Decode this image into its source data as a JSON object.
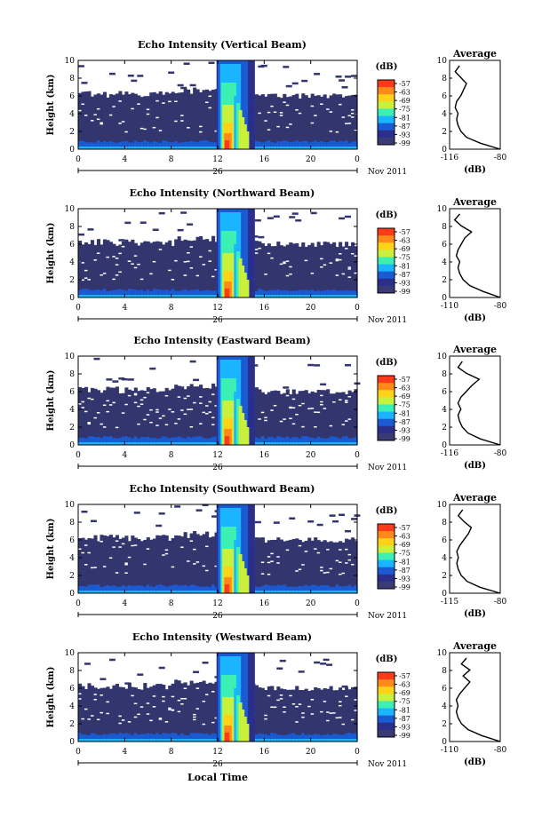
{
  "chart_data": {
    "type": "heatmap",
    "figure_xlabel": "Local Time",
    "date_label": "26",
    "month_label": "Nov 2011",
    "panels": [
      {
        "title": "Echo Intensity (Vertical Beam)",
        "ylabel": "Height (km)",
        "xlim": [
          0,
          24
        ],
        "ylim": [
          0,
          10
        ],
        "xticks": [
          "0",
          "4",
          "8",
          "12",
          "16",
          "20",
          "0"
        ],
        "yticks": [
          "0",
          "2",
          "4",
          "6",
          "8",
          "10"
        ],
        "colorbar_unit": "(dB)",
        "colorbar_ticks": [
          "-57",
          "-63",
          "-69",
          "-75",
          "-81",
          "-87",
          "-93",
          "-99"
        ],
        "avg_title": "Average",
        "avg_xlabel": "(dB)",
        "avg_xticks": [
          "-116",
          "-80"
        ],
        "avg_xlim": [
          -116,
          -80
        ],
        "avg_profile_db": [
          -80,
          -94,
          -104,
          -108,
          -110,
          -111,
          -110,
          -112,
          -111,
          -108,
          -106,
          -104,
          -108,
          -112,
          -109
        ]
      },
      {
        "title": "Echo Intensity (Northward Beam)",
        "ylabel": "Height (km)",
        "xlim": [
          0,
          24
        ],
        "ylim": [
          0,
          10
        ],
        "xticks": [
          "0",
          "4",
          "8",
          "12",
          "16",
          "20",
          "0"
        ],
        "yticks": [
          "0",
          "2",
          "4",
          "6",
          "8",
          "10"
        ],
        "colorbar_unit": "(dB)",
        "colorbar_ticks": [
          "-57",
          "-63",
          "-69",
          "-75",
          "-81",
          "-87",
          "-93",
          "-99"
        ],
        "avg_title": "Average",
        "avg_xlabel": "(dB)",
        "avg_xticks": [
          "-110",
          "-80"
        ],
        "avg_xlim": [
          -110,
          -80
        ],
        "avg_profile_db": [
          -80,
          -90,
          -98,
          -102,
          -104,
          -105,
          -104,
          -106,
          -105,
          -103,
          -101,
          -97,
          -103,
          -107,
          -104
        ]
      },
      {
        "title": "Echo Intensity (Eastward Beam)",
        "ylabel": "Height (km)",
        "xlim": [
          0,
          24
        ],
        "ylim": [
          0,
          10
        ],
        "xticks": [
          "0",
          "4",
          "8",
          "12",
          "16",
          "20",
          "0"
        ],
        "yticks": [
          "0",
          "2",
          "4",
          "6",
          "8",
          "10"
        ],
        "colorbar_unit": "(dB)",
        "colorbar_ticks": [
          "-57",
          "-63",
          "-69",
          "-75",
          "-81",
          "-87",
          "-93",
          "-99"
        ],
        "avg_title": "Average",
        "avg_xlabel": "(dB)",
        "avg_xticks": [
          "-116",
          "-80"
        ],
        "avg_xlim": [
          -116,
          -80
        ],
        "avg_profile_db": [
          -80,
          -94,
          -103,
          -107,
          -109,
          -110,
          -108,
          -110,
          -108,
          -104,
          -100,
          -95,
          -104,
          -110,
          -107
        ]
      },
      {
        "title": "Echo Intensity (Southward Beam)",
        "ylabel": "Height (km)",
        "xlim": [
          0,
          24
        ],
        "ylim": [
          0,
          10
        ],
        "xticks": [
          "0",
          "4",
          "8",
          "12",
          "16",
          "20",
          "0"
        ],
        "yticks": [
          "0",
          "2",
          "4",
          "6",
          "8",
          "10"
        ],
        "colorbar_unit": "(dB)",
        "colorbar_ticks": [
          "-57",
          "-63",
          "-69",
          "-75",
          "-81",
          "-87",
          "-93",
          "-99"
        ],
        "avg_title": "Average",
        "avg_xlabel": "(dB)",
        "avg_xticks": [
          "-115",
          "-80"
        ],
        "avg_xlim": [
          -115,
          -80
        ],
        "avg_profile_db": [
          -80,
          -94,
          -103,
          -107,
          -109,
          -110,
          -109,
          -110,
          -108,
          -105,
          -102,
          -100,
          -105,
          -109,
          -106
        ]
      },
      {
        "title": "Echo Intensity (Westward Beam)",
        "ylabel": "Height (km)",
        "xlim": [
          0,
          24
        ],
        "ylim": [
          0,
          10
        ],
        "xticks": [
          "0",
          "4",
          "8",
          "12",
          "16",
          "20",
          "0"
        ],
        "yticks": [
          "0",
          "2",
          "4",
          "6",
          "8",
          "10"
        ],
        "colorbar_unit": "(dB)",
        "colorbar_ticks": [
          "-57",
          "-63",
          "-69",
          "-75",
          "-81",
          "-87",
          "-93",
          "-99"
        ],
        "avg_title": "Average",
        "avg_xlabel": "(dB)",
        "avg_xticks": [
          "-110",
          "-80"
        ],
        "avg_xlim": [
          -110,
          -80
        ],
        "avg_profile_db": [
          -80,
          -91,
          -99,
          -103,
          -105,
          -106,
          -105,
          -106,
          -104,
          -101,
          -98,
          -102,
          -98,
          -103,
          -100
        ]
      }
    ],
    "colormap": [
      "#ff3a1a",
      "#ff8a1a",
      "#ffd21a",
      "#c8f03c",
      "#3cf0b4",
      "#1ab4ff",
      "#1a5ad2",
      "#2b2f8c",
      "#3a3a74"
    ],
    "background_color": "#33366e"
  }
}
